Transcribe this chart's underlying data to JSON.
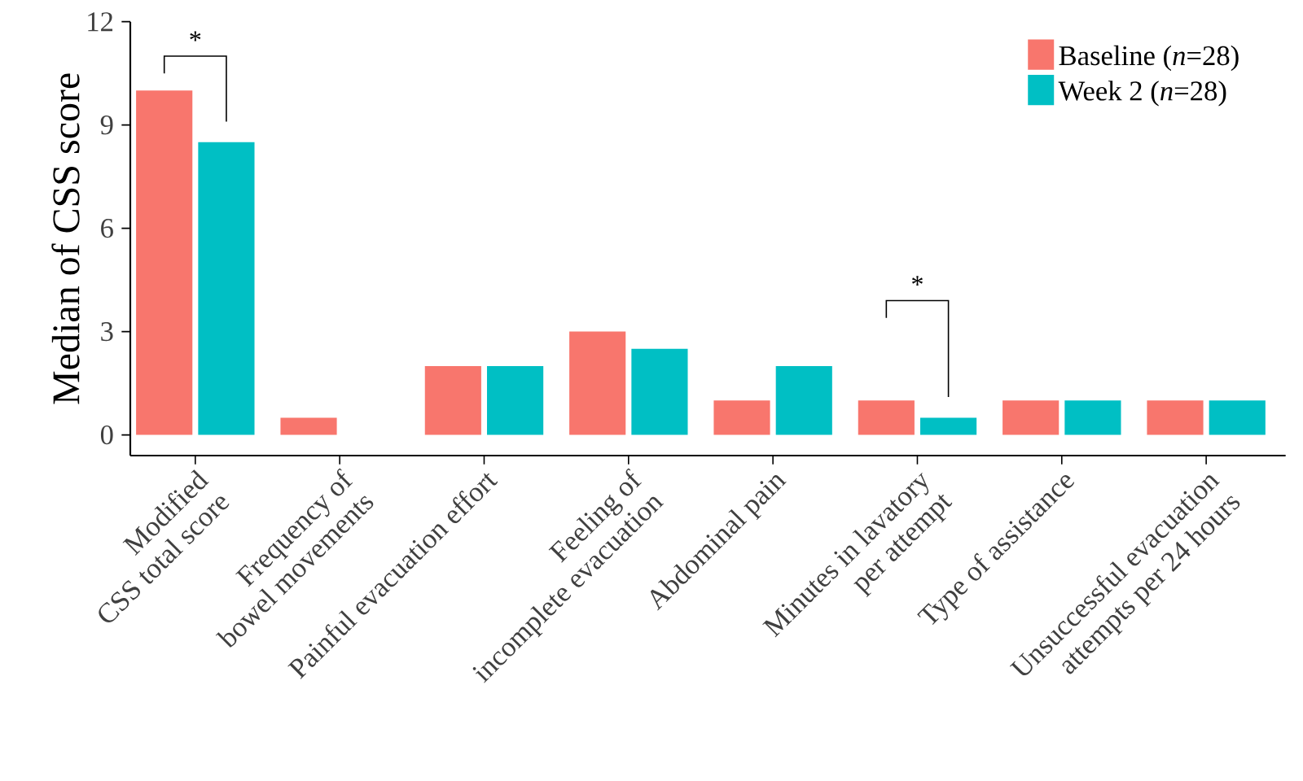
{
  "chart_data": {
    "type": "bar",
    "ylabel": "Median of CSS score",
    "categories": [
      "Modified\nCSS total score",
      "Frequency of\nbowel movements",
      "Painful evacuation effort",
      "Feeling of\nincomplete evacuation",
      "Abdominal pain",
      "Minutes in lavatory\nper attempt",
      "Type of assistance",
      "Unsuccessful evacuation\nattempts per 24 hours"
    ],
    "series": [
      {
        "name": "Baseline (*n*=28)",
        "color": "#f8766d",
        "values": [
          10,
          0.5,
          2,
          3,
          1,
          1,
          1,
          1
        ]
      },
      {
        "name": "Week 2 (*n*=28)",
        "color": "#00bfc4",
        "values": [
          8.5,
          0,
          2,
          2.5,
          2,
          0.5,
          1,
          1
        ]
      }
    ],
    "ylim": [
      -0.6,
      12
    ],
    "yticks": [
      0,
      3,
      6,
      9,
      12
    ],
    "annotations": [
      "*",
      "*"
    ],
    "grid": false,
    "legend": "top right"
  }
}
